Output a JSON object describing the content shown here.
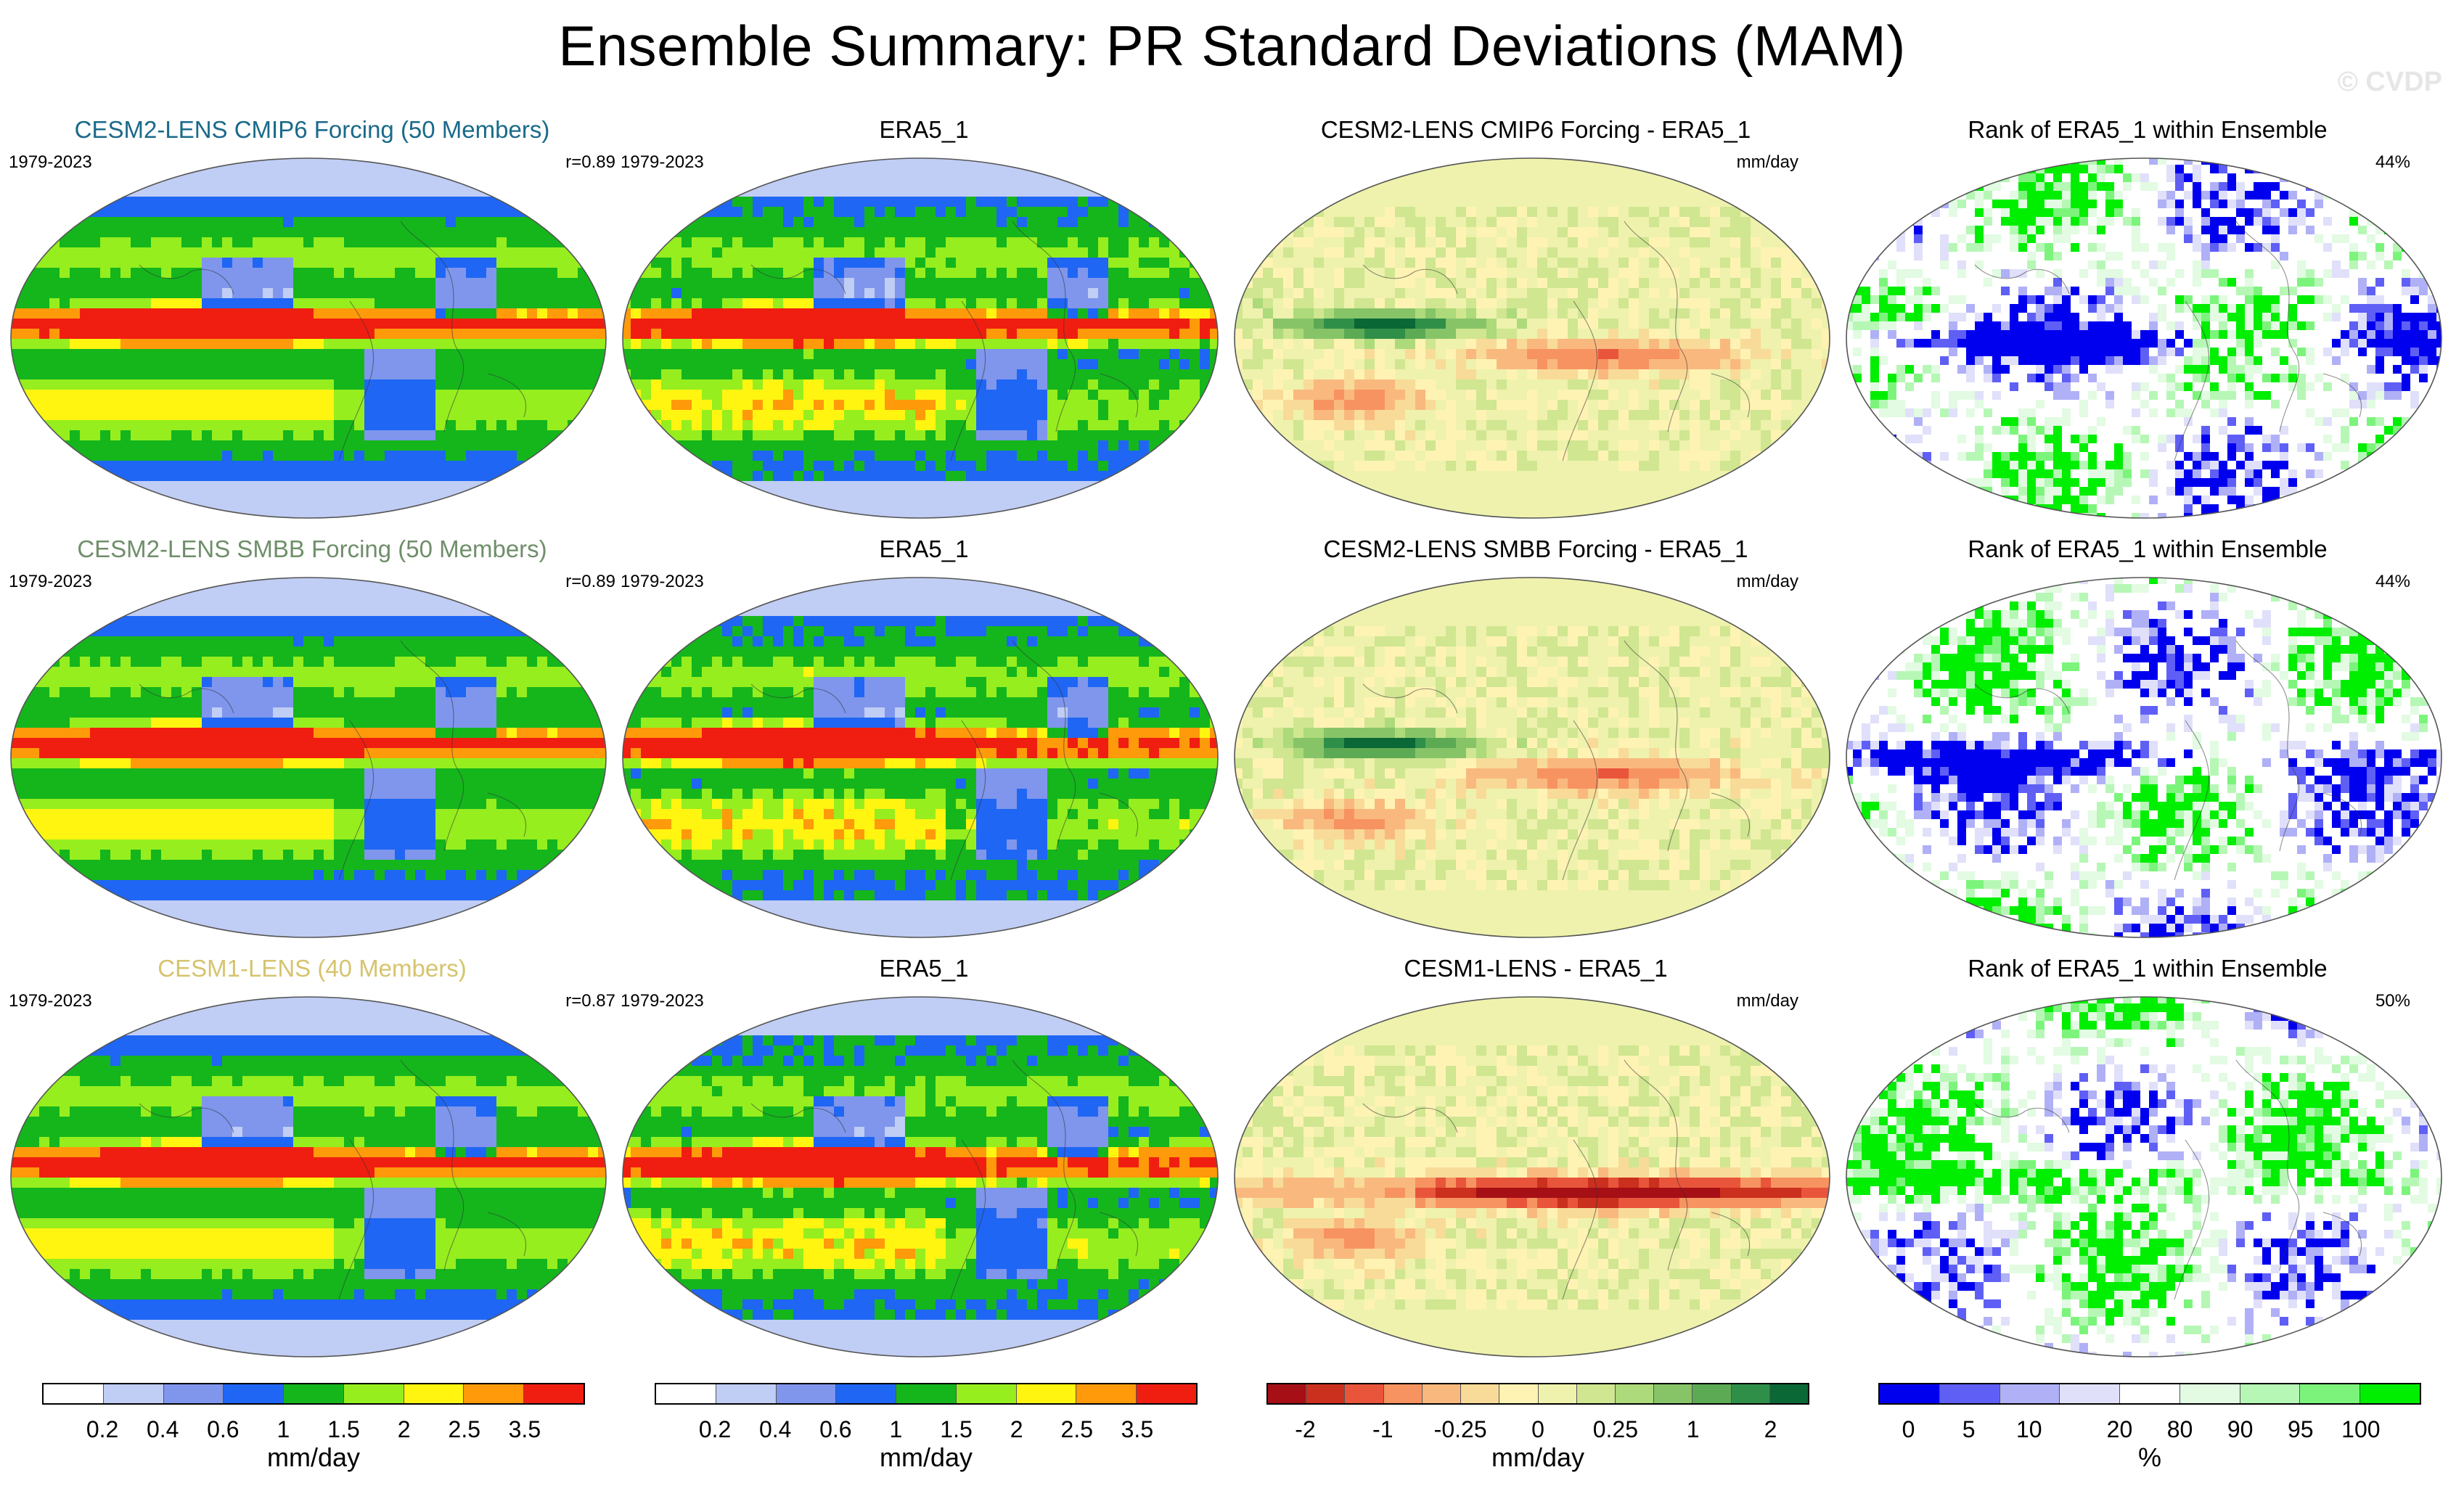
{
  "title": "Ensemble Summary: PR Standard Deviations (MAM)",
  "watermark": "© CVDP",
  "palettes": {
    "mean": [
      "#ffffff",
      "#c0cdf4",
      "#7f96ec",
      "#1f66f4",
      "#14b61c",
      "#96ee1e",
      "#fff510",
      "#ff9a0a",
      "#f01e10"
    ],
    "diff": [
      "#a50f15",
      "#cb2f1e",
      "#e9553b",
      "#f79360",
      "#f9b97e",
      "#f8db98",
      "#fff3b4",
      "#eef2ac",
      "#d0e691",
      "#adda7a",
      "#87c468",
      "#5daa54",
      "#2f8f48",
      "#0a6736"
    ],
    "rank": [
      "#0000ee",
      "#5f5ff6",
      "#b0b0f7",
      "#e0e0fa",
      "#ffffff",
      "#e2fbe2",
      "#b6f7b6",
      "#7cf47c",
      "#00ee00"
    ]
  },
  "chart_data": {
    "type": "map-grid",
    "rows": [
      {
        "ensemble": "CESM2-LENS CMIP6 Forcing (50 Members)",
        "ens_color": "#1a6a8a",
        "period": "1979-2023",
        "pattern_corr": "r=0.89",
        "obs_title": "ERA5_1",
        "obs_period": "1979-2023",
        "diff_title": "CESM2-LENS CMIP6 Forcing - ERA5_1",
        "diff_units": "mm/day",
        "rank_title": "Rank of ERA5_1 within Ensemble",
        "rank_pct": "44%"
      },
      {
        "ensemble": "CESM2-LENS SMBB Forcing (50 Members)",
        "ens_color": "#6f8f6a",
        "period": "1979-2023",
        "pattern_corr": "r=0.89",
        "obs_title": "ERA5_1",
        "obs_period": "1979-2023",
        "diff_title": "CESM2-LENS SMBB Forcing - ERA5_1",
        "diff_units": "mm/day",
        "rank_title": "Rank of ERA5_1 within Ensemble",
        "rank_pct": "44%"
      },
      {
        "ensemble": "CESM1-LENS (40 Members)",
        "ens_color": "#d6c46e",
        "period": "1979-2023",
        "pattern_corr": "r=0.87",
        "obs_title": "ERA5_1",
        "obs_period": "1979-2023",
        "diff_title": "CESM1-LENS - ERA5_1",
        "diff_units": "mm/day",
        "rank_title": "Rank of ERA5_1 within Ensemble",
        "rank_pct": "50%"
      }
    ],
    "colorbars": {
      "mean": {
        "levels": [
          "0.2",
          "0.4",
          "0.6",
          "1",
          "1.5",
          "2",
          "2.5",
          "3.5"
        ],
        "units": "mm/day"
      },
      "obs": {
        "levels": [
          "0.2",
          "0.4",
          "0.6",
          "1",
          "1.5",
          "2",
          "2.5",
          "3.5"
        ],
        "units": "mm/day"
      },
      "diff": {
        "labels": [
          "-2",
          "-1",
          "-0.25",
          "0",
          "0.25",
          "1",
          "2"
        ],
        "label_bounds": [
          1,
          3,
          5,
          7,
          9,
          11,
          13
        ],
        "units": "mm/day"
      },
      "rank": {
        "labels": [
          "0",
          "5",
          "10",
          "20",
          "80",
          "90",
          "95",
          "100"
        ],
        "label_bounds": [
          0.5,
          1.5,
          2.5,
          4,
          5,
          6,
          7,
          8
        ],
        "units": "%"
      }
    }
  }
}
